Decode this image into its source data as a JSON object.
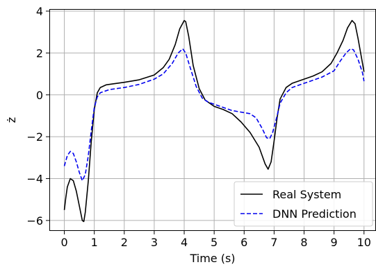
{
  "chart_data": {
    "type": "line",
    "title": "",
    "xlabel": "Time (s)",
    "ylabel": "ż",
    "xlim": [
      -0.5,
      10.4
    ],
    "ylim": [
      -6.5,
      4.1
    ],
    "x_ticks": [
      0,
      1,
      2,
      3,
      4,
      5,
      6,
      7,
      8,
      9,
      10
    ],
    "y_ticks": [
      -6,
      -4,
      -2,
      0,
      2,
      4
    ],
    "x_tick_labels": [
      "0",
      "1",
      "2",
      "3",
      "4",
      "5",
      "6",
      "7",
      "8",
      "9",
      "10"
    ],
    "y_tick_labels": [
      "−6",
      "−4",
      "−2",
      "0",
      "2",
      "4"
    ],
    "grid": true,
    "legend_position": "bottom-right",
    "series": [
      {
        "name": "Real System",
        "color": "#000000",
        "style": "solid",
        "points": [
          [
            0.0,
            -5.5
          ],
          [
            0.05,
            -4.9
          ],
          [
            0.1,
            -4.4
          ],
          [
            0.2,
            -4.0
          ],
          [
            0.3,
            -4.1
          ],
          [
            0.4,
            -4.6
          ],
          [
            0.5,
            -5.3
          ],
          [
            0.6,
            -6.0
          ],
          [
            0.65,
            -6.05
          ],
          [
            0.7,
            -5.6
          ],
          [
            0.8,
            -4.1
          ],
          [
            0.9,
            -2.2
          ],
          [
            1.0,
            -0.7
          ],
          [
            1.1,
            0.1
          ],
          [
            1.2,
            0.35
          ],
          [
            1.4,
            0.48
          ],
          [
            1.6,
            0.52
          ],
          [
            2.0,
            0.6
          ],
          [
            2.5,
            0.72
          ],
          [
            3.0,
            0.95
          ],
          [
            3.3,
            1.3
          ],
          [
            3.5,
            1.7
          ],
          [
            3.7,
            2.4
          ],
          [
            3.85,
            3.15
          ],
          [
            4.0,
            3.55
          ],
          [
            4.05,
            3.5
          ],
          [
            4.15,
            2.8
          ],
          [
            4.3,
            1.4
          ],
          [
            4.5,
            0.3
          ],
          [
            4.7,
            -0.25
          ],
          [
            5.0,
            -0.55
          ],
          [
            5.3,
            -0.7
          ],
          [
            5.6,
            -0.9
          ],
          [
            5.9,
            -1.3
          ],
          [
            6.2,
            -1.8
          ],
          [
            6.5,
            -2.5
          ],
          [
            6.7,
            -3.3
          ],
          [
            6.8,
            -3.55
          ],
          [
            6.9,
            -3.2
          ],
          [
            7.0,
            -2.2
          ],
          [
            7.1,
            -1.1
          ],
          [
            7.2,
            -0.2
          ],
          [
            7.4,
            0.35
          ],
          [
            7.6,
            0.55
          ],
          [
            8.0,
            0.75
          ],
          [
            8.3,
            0.9
          ],
          [
            8.6,
            1.1
          ],
          [
            8.9,
            1.5
          ],
          [
            9.1,
            2.0
          ],
          [
            9.3,
            2.6
          ],
          [
            9.45,
            3.2
          ],
          [
            9.6,
            3.55
          ],
          [
            9.7,
            3.4
          ],
          [
            9.8,
            2.7
          ],
          [
            9.9,
            1.9
          ],
          [
            10.0,
            1.1
          ]
        ]
      },
      {
        "name": "DNN Prediction",
        "color": "#0000ee",
        "style": "dashed",
        "points": [
          [
            0.0,
            -3.4
          ],
          [
            0.1,
            -2.9
          ],
          [
            0.2,
            -2.7
          ],
          [
            0.3,
            -2.8
          ],
          [
            0.4,
            -3.2
          ],
          [
            0.5,
            -3.7
          ],
          [
            0.6,
            -4.1
          ],
          [
            0.7,
            -3.8
          ],
          [
            0.8,
            -2.9
          ],
          [
            0.9,
            -1.7
          ],
          [
            1.0,
            -0.6
          ],
          [
            1.1,
            -0.1
          ],
          [
            1.2,
            0.1
          ],
          [
            1.5,
            0.25
          ],
          [
            2.0,
            0.35
          ],
          [
            2.5,
            0.5
          ],
          [
            3.0,
            0.75
          ],
          [
            3.3,
            1.0
          ],
          [
            3.6,
            1.5
          ],
          [
            3.8,
            2.0
          ],
          [
            3.95,
            2.2
          ],
          [
            4.05,
            2.0
          ],
          [
            4.2,
            1.3
          ],
          [
            4.4,
            0.4
          ],
          [
            4.6,
            -0.15
          ],
          [
            4.8,
            -0.35
          ],
          [
            5.0,
            -0.45
          ],
          [
            5.3,
            -0.6
          ],
          [
            5.6,
            -0.75
          ],
          [
            6.0,
            -0.85
          ],
          [
            6.2,
            -0.9
          ],
          [
            6.4,
            -1.1
          ],
          [
            6.6,
            -1.6
          ],
          [
            6.75,
            -2.05
          ],
          [
            6.85,
            -2.1
          ],
          [
            6.95,
            -1.8
          ],
          [
            7.1,
            -1.0
          ],
          [
            7.2,
            -0.4
          ],
          [
            7.4,
            0.1
          ],
          [
            7.6,
            0.35
          ],
          [
            8.0,
            0.55
          ],
          [
            8.3,
            0.7
          ],
          [
            8.6,
            0.85
          ],
          [
            9.0,
            1.15
          ],
          [
            9.2,
            1.6
          ],
          [
            9.4,
            2.0
          ],
          [
            9.55,
            2.2
          ],
          [
            9.65,
            2.15
          ],
          [
            9.8,
            1.7
          ],
          [
            9.95,
            1.05
          ],
          [
            10.0,
            0.65
          ]
        ]
      }
    ]
  }
}
